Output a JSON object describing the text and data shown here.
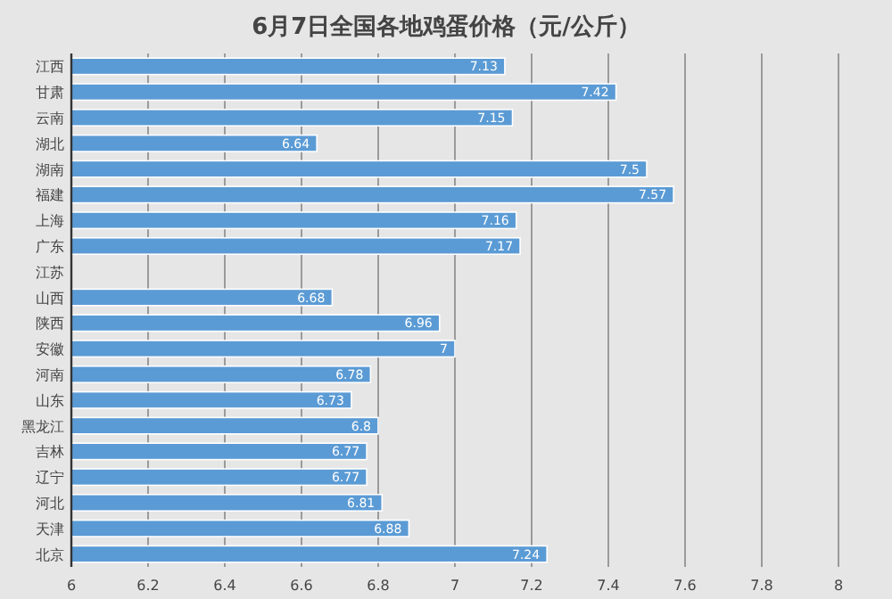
{
  "chart_data": {
    "type": "bar",
    "orientation": "horizontal",
    "title": "6月7日全国各地鸡蛋价格（元/公斤）",
    "categories": [
      "江西",
      "甘肃",
      "云南",
      "湖北",
      "湖南",
      "福建",
      "上海",
      "广东",
      "江苏",
      "山西",
      "陕西",
      "安徽",
      "河南",
      "山东",
      "黑龙江",
      "吉林",
      "辽宁",
      "河北",
      "天津",
      "北京"
    ],
    "values": [
      7.13,
      7.42,
      7.15,
      6.64,
      7.5,
      7.57,
      7.16,
      7.17,
      null,
      6.68,
      6.96,
      7,
      6.78,
      6.73,
      6.8,
      6.77,
      6.77,
      6.81,
      6.88,
      7.24
    ],
    "value_labels": [
      "7.13",
      "7.42",
      "7.15",
      "6.64",
      "7.5",
      "7.57",
      "7.16",
      "7.17",
      null,
      "6.68",
      "6.96",
      "7",
      "6.78",
      "6.73",
      "6.8",
      "6.77",
      "6.77",
      "6.81",
      "6.88",
      "7.24"
    ],
    "color": "#5b9bd5",
    "xlim": [
      6,
      8
    ],
    "xticks": [
      6,
      6.2,
      6.4,
      6.6,
      6.8,
      7,
      7.2,
      7.4,
      7.6,
      7.8,
      8
    ],
    "grid": "x"
  }
}
